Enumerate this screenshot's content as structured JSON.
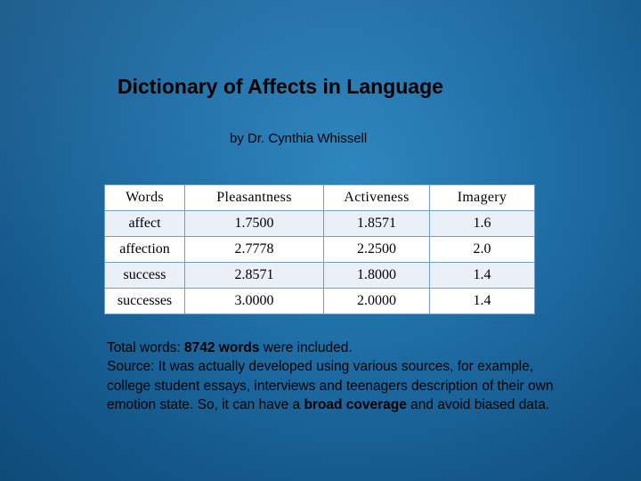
{
  "slide": {
    "title": "Dictionary of Affects in Language",
    "subtitle": "by  Dr. Cynthia Whissell"
  },
  "table": {
    "headers": [
      "Words",
      "Pleasantness",
      "Activeness",
      "Imagery"
    ],
    "rows": [
      [
        "affect",
        "1.7500",
        "1.8571",
        "1.6"
      ],
      [
        "affection",
        "2.7778",
        "2.2500",
        "2.0"
      ],
      [
        "success",
        "2.8571",
        "1.8000",
        "1.4"
      ],
      [
        "successes",
        "3.0000",
        "2.0000",
        "1.4"
      ]
    ]
  },
  "notes": {
    "total_prefix": "Total words: ",
    "total_bold": "8742 words",
    "total_suffix": " were included.",
    "source_a": "Source: It was actually developed using various sources, for example, college student essays, interviews and teenagers description of their own emotion state. So, it can have a ",
    "source_bold1": "broad coverage",
    "source_b": " and avoid biased data."
  },
  "colors": {
    "background": "#1f6ea6",
    "table_border": "#6f9fc8",
    "table_stripe": "#e9f0f8"
  }
}
